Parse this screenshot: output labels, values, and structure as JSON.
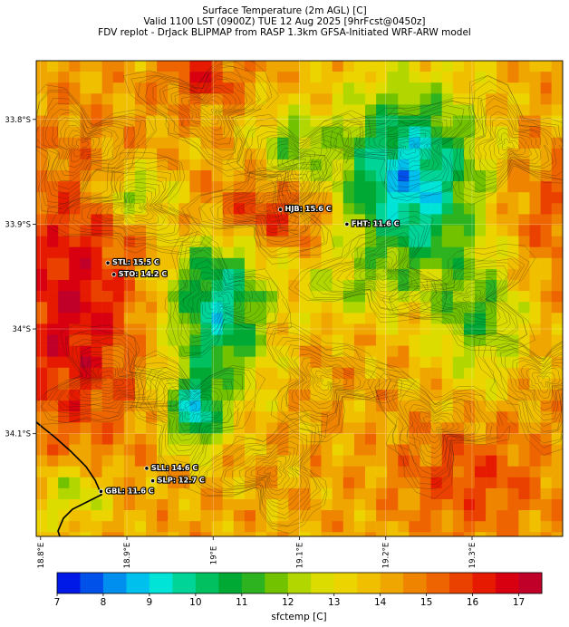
{
  "title": {
    "line1": "Surface Temperature (2m AGL) [C]",
    "line2": "Valid 1100 LST (0900Z) TUE 12 Aug 2025 [9hrFcst@0450z]",
    "line3": "FDV replot - DrJack BLIPMAP from RASP 1.3km GFSA-Initiated WRF-ARW model"
  },
  "map": {
    "lat_ticks": [
      "33.8°S",
      "33.9°S",
      "34°S",
      "34.1°S"
    ],
    "lon_ticks": [
      "18.8°E",
      "18.9°E",
      "19°E",
      "19.1°E",
      "19.2°E",
      "19.3°E"
    ],
    "lon_range": [
      18.795,
      19.405
    ],
    "lat_range": [
      -33.744,
      -34.198
    ],
    "stations": [
      {
        "label": "HJB: 15.6 C",
        "lon": 19.078,
        "lat": -33.886
      },
      {
        "label": "FHT: 11.6 C",
        "lon": 19.155,
        "lat": -33.9
      },
      {
        "label": "STL: 15.5 C",
        "lon": 18.878,
        "lat": -33.937
      },
      {
        "label": "STO: 14.2 C",
        "lon": 18.885,
        "lat": -33.948
      },
      {
        "label": "SLL: 14.6 C",
        "lon": 18.923,
        "lat": -34.133
      },
      {
        "label": "SLP: 12.7 C",
        "lon": 18.93,
        "lat": -34.145
      },
      {
        "label": "GBL: 11.6 C",
        "lon": 18.87,
        "lat": -34.155
      }
    ]
  },
  "colorbar": {
    "ticks": [
      "7",
      "8",
      "9",
      "10",
      "11",
      "12",
      "13",
      "14",
      "15",
      "16",
      "17"
    ],
    "label": "sfctemp [C]",
    "colors": [
      "#0019e6",
      "#0050ea",
      "#008fee",
      "#00c0ee",
      "#00e4d8",
      "#00d496",
      "#00c060",
      "#00a933",
      "#2db320",
      "#72c200",
      "#b2d600",
      "#dcdc00",
      "#ecd400",
      "#f0c000",
      "#f0a600",
      "#ee8400",
      "#ee6400",
      "#ea4000",
      "#e61a00",
      "#d80010",
      "#c00028"
    ]
  }
}
